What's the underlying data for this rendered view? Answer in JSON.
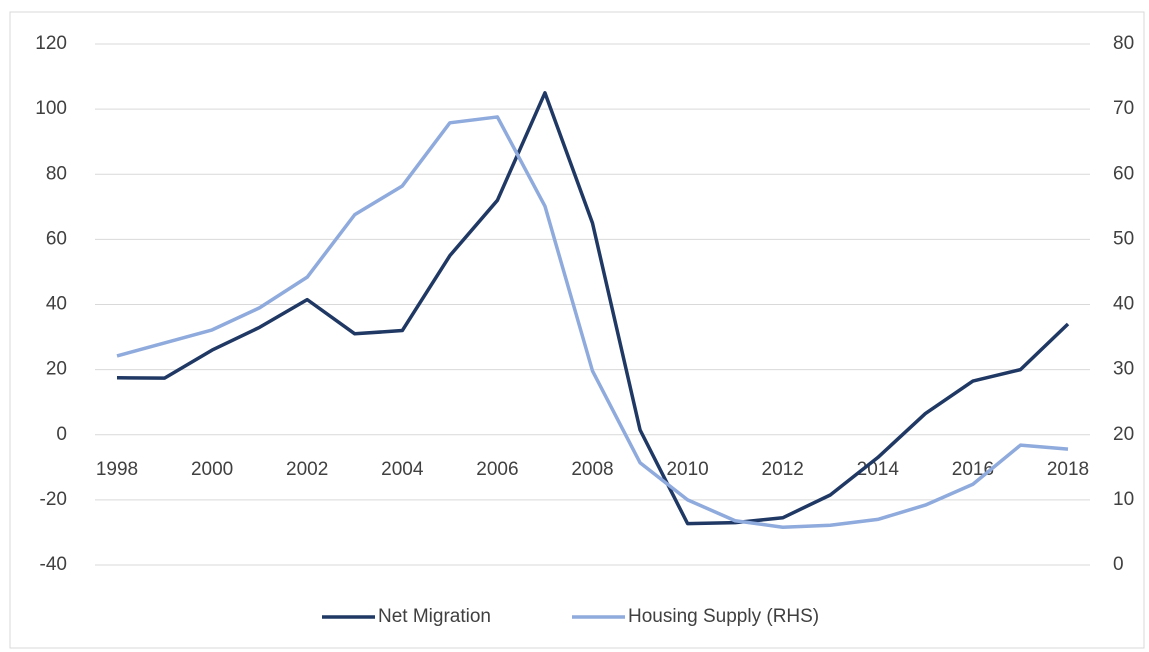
{
  "chart_data": {
    "type": "line",
    "x": [
      1998,
      1999,
      2000,
      2001,
      2002,
      2003,
      2004,
      2005,
      2006,
      2007,
      2008,
      2009,
      2010,
      2011,
      2012,
      2013,
      2014,
      2015,
      2016,
      2017,
      2018
    ],
    "series": [
      {
        "name": "Net Migration",
        "color": "#1f3864",
        "values": [
          17.5,
          17.4,
          26,
          33,
          41.5,
          31,
          32,
          55,
          72,
          105,
          65,
          1.5,
          -27.3,
          -27,
          -25.5,
          -18.5,
          -7,
          6.5,
          16.5,
          20,
          34
        ]
      },
      {
        "name": "Housing Supply (RHS)",
        "color": "#8faadc",
        "axis": "y2",
        "values": [
          32.1,
          34.1,
          36.1,
          39.5,
          44.2,
          53.8,
          58.2,
          67.9,
          68.8,
          55.1,
          29.8,
          15.7,
          10,
          6.8,
          5.8,
          6.1,
          7,
          9.2,
          12.4,
          18.4,
          17.8
        ]
      }
    ],
    "xlim": [
      1998,
      2018
    ],
    "xticks": [
      1998,
      2000,
      2002,
      2004,
      2006,
      2008,
      2010,
      2012,
      2014,
      2016,
      2018
    ],
    "ylim": [
      -40,
      120
    ],
    "yticks": [
      -40,
      -20,
      0,
      20,
      40,
      60,
      80,
      100,
      120
    ],
    "y2lim": [
      0,
      80
    ],
    "y2ticks": [
      0,
      10,
      20,
      30,
      40,
      50,
      60,
      70,
      80
    ],
    "grid": true,
    "legend": "bottom"
  }
}
